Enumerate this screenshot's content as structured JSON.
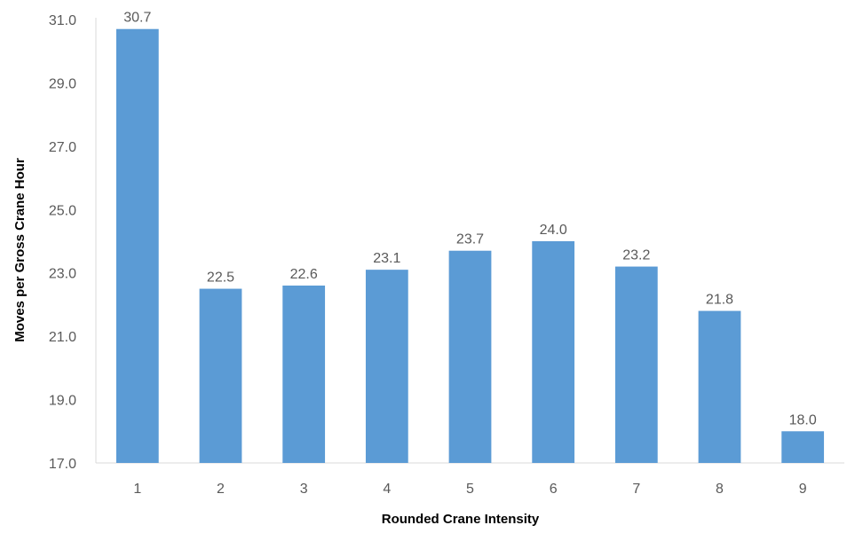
{
  "chart_data": {
    "type": "bar",
    "categories": [
      "1",
      "2",
      "3",
      "4",
      "5",
      "6",
      "7",
      "8",
      "9"
    ],
    "values": [
      30.7,
      22.5,
      22.6,
      23.1,
      23.7,
      24.0,
      23.2,
      21.8,
      18.0
    ],
    "data_labels": [
      "30.7",
      "22.5",
      "22.6",
      "23.1",
      "23.7",
      "24.0",
      "23.2",
      "21.8",
      "18.0"
    ],
    "title": "",
    "xlabel": "Rounded Crane Intensity",
    "ylabel": "Moves per Gross Crane Hour",
    "ylim": [
      17.0,
      31.0
    ],
    "yticks": [
      17.0,
      19.0,
      21.0,
      23.0,
      25.0,
      27.0,
      29.0,
      31.0
    ],
    "ytick_labels": [
      "17.0",
      "19.0",
      "21.0",
      "23.0",
      "25.0",
      "27.0",
      "29.0",
      "31.0"
    ],
    "grid": false,
    "legend": "none",
    "bar_color": "#5b9bd5",
    "axis_color": "#d9d9d9"
  }
}
